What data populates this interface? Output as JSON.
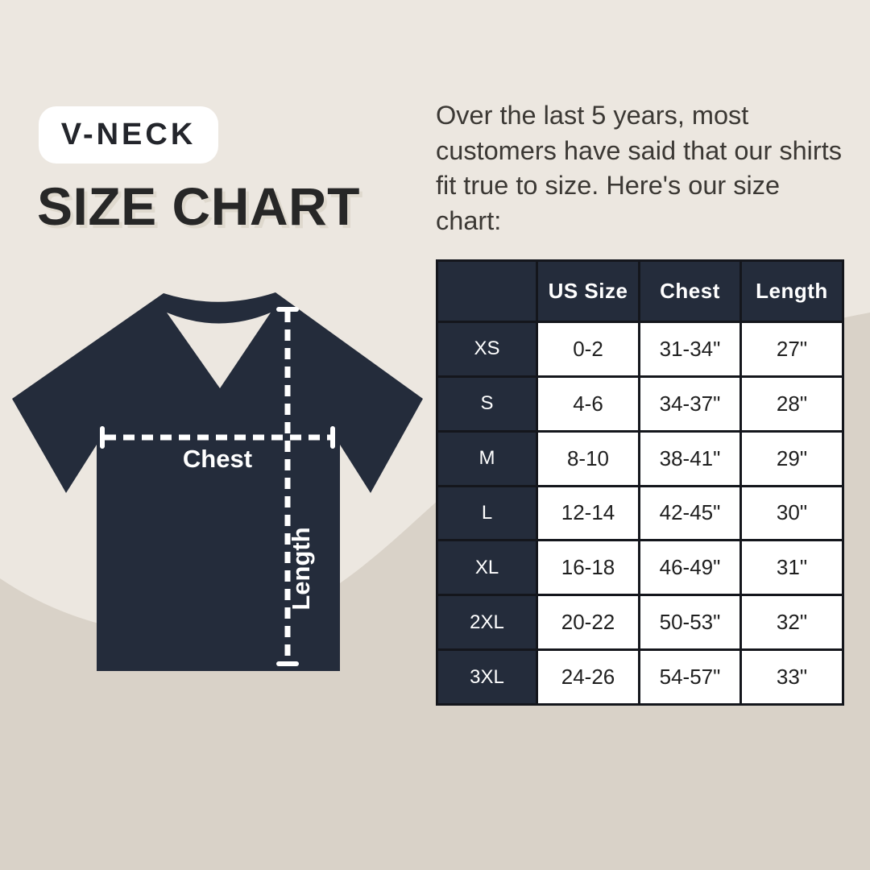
{
  "colors": {
    "background_top": "#ECE7E0",
    "background_bottom": "#D9D2C8",
    "shirt_navy": "#242C3B",
    "table_border": "#14161C",
    "measure_line": "#FFFFFF",
    "title_text": "#272727",
    "body_text": "#3B3834"
  },
  "badge": {
    "label": "V-NECK"
  },
  "title": {
    "text": "SIZE CHART"
  },
  "intro": {
    "text": "Over the last 5 years, most customers have said that our shirts fit true to size. Here's our size chart:"
  },
  "diagram": {
    "chest_label": "Chest",
    "length_label": "Length"
  },
  "chart_data": {
    "type": "table",
    "title": "SIZE CHART",
    "columns": [
      "",
      "US Size",
      "Chest",
      "Length"
    ],
    "rows": [
      [
        "XS",
        "0-2",
        "31-34\"",
        "27\""
      ],
      [
        "S",
        "4-6",
        "34-37\"",
        "28\""
      ],
      [
        "M",
        "8-10",
        "38-41\"",
        "29\""
      ],
      [
        "L",
        "12-14",
        "42-45\"",
        "30\""
      ],
      [
        "XL",
        "16-18",
        "46-49\"",
        "31\""
      ],
      [
        "2XL",
        "20-22",
        "50-53\"",
        "32\""
      ],
      [
        "3XL",
        "24-26",
        "54-57\"",
        "33\""
      ]
    ]
  }
}
